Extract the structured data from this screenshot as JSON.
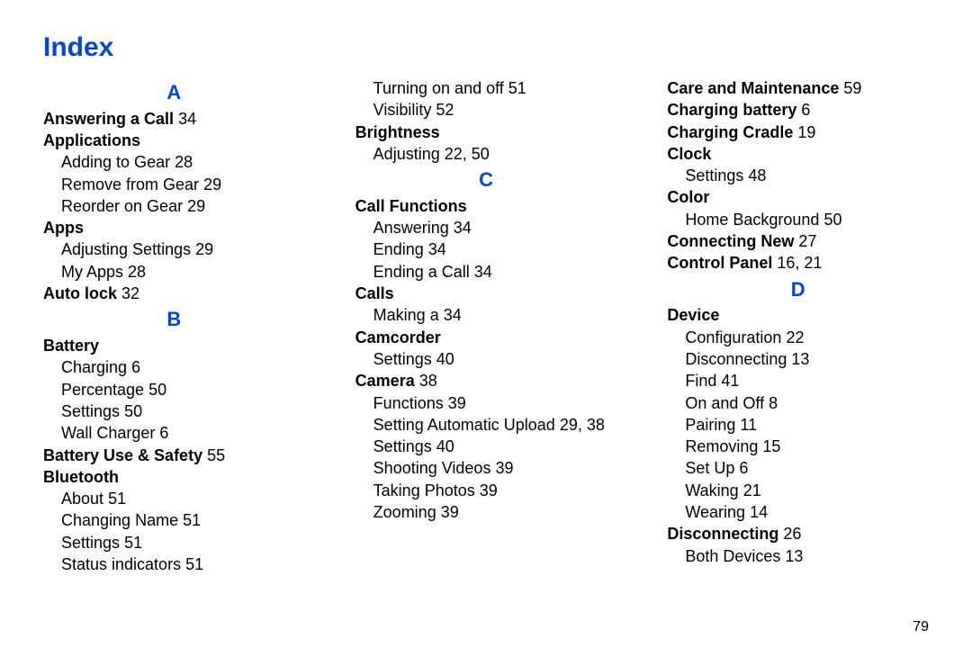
{
  "page": {
    "title": "Index",
    "pagenum": "79",
    "colors": {
      "heading_blue": "#0047d6",
      "text_black": "#000000",
      "background": "#ffffff"
    },
    "typography": {
      "body_fontsize_pt": 14,
      "title_fontsize_pt": 22,
      "letter_fontsize_pt": 17
    }
  },
  "letters": {
    "A": "A",
    "B": "B",
    "C": "C",
    "D": "D"
  },
  "col1": {
    "answering_a_call": {
      "label": "Answering a Call",
      "pg": "34"
    },
    "applications": {
      "label": "Applications",
      "adding": {
        "label": "Adding to Gear",
        "pg": "28"
      },
      "remove": {
        "label": "Remove from Gear",
        "pg": "29"
      },
      "reorder": {
        "label": "Reorder on Gear",
        "pg": "29"
      }
    },
    "apps": {
      "label": "Apps",
      "adj": {
        "label": "Adjusting Settings",
        "pg": "29"
      },
      "my": {
        "label": "My Apps",
        "pg": "28"
      }
    },
    "auto_lock": {
      "label": "Auto lock",
      "pg": "32"
    },
    "battery": {
      "label": "Battery",
      "charging": {
        "label": "Charging",
        "pg": "6"
      },
      "percentage": {
        "label": "Percentage",
        "pg": "50"
      },
      "settings": {
        "label": "Settings",
        "pg": "50"
      },
      "wall": {
        "label": "Wall Charger",
        "pg": "6"
      }
    },
    "bus": {
      "label": "Battery Use & Safety",
      "pg": "55"
    },
    "bluetooth": {
      "label": "Bluetooth",
      "about": {
        "label": "About",
        "pg": "51"
      },
      "chname": {
        "label": "Changing Name",
        "pg": "51"
      },
      "settings": {
        "label": "Settings",
        "pg": "51"
      },
      "status": {
        "label": "Status indicators",
        "pg": "51"
      }
    }
  },
  "col2": {
    "bt_cont": {
      "turn": {
        "label": "Turning on and off",
        "pg": "51"
      },
      "vis": {
        "label": "Visibility",
        "pg": "52"
      }
    },
    "brightness": {
      "label": "Brightness",
      "adj": {
        "label": "Adjusting",
        "pg": "22, 50"
      }
    },
    "call_functions": {
      "label": "Call Functions",
      "ans": {
        "label": "Answering",
        "pg": "34"
      },
      "end": {
        "label": "Ending",
        "pg": "34"
      },
      "endcall": {
        "label": "Ending a Call",
        "pg": "34"
      }
    },
    "calls": {
      "label": "Calls",
      "making": {
        "label": "Making a",
        "pg": "34"
      }
    },
    "camcorder": {
      "label": "Camcorder",
      "settings": {
        "label": "Settings",
        "pg": "40"
      }
    },
    "camera": {
      "label": "Camera",
      "pg": "38",
      "functions": {
        "label": "Functions",
        "pg": "39"
      },
      "upload": {
        "label": "Setting Automatic Upload",
        "pg": "29, 38"
      },
      "settings": {
        "label": "Settings",
        "pg": "40"
      },
      "videos": {
        "label": "Shooting Videos",
        "pg": "39"
      },
      "photos": {
        "label": "Taking Photos",
        "pg": "39"
      },
      "zoom": {
        "label": "Zooming",
        "pg": "39"
      }
    }
  },
  "col3": {
    "care": {
      "label": "Care and Maintenance",
      "pg": "59"
    },
    "chbatt": {
      "label": "Charging battery",
      "pg": "6"
    },
    "cradle": {
      "label": "Charging Cradle",
      "pg": "19"
    },
    "clock": {
      "label": "Clock",
      "settings": {
        "label": "Settings",
        "pg": "48"
      }
    },
    "color": {
      "label": "Color",
      "home": {
        "label": "Home Background",
        "pg": "50"
      }
    },
    "connecting": {
      "label": "Connecting New",
      "pg": "27"
    },
    "cpanel": {
      "label": "Control Panel",
      "pg": "16, 21"
    },
    "device": {
      "label": "Device",
      "config": {
        "label": "Configuration",
        "pg": "22"
      },
      "disc": {
        "label": "Disconnecting",
        "pg": "13"
      },
      "find": {
        "label": "Find",
        "pg": "41"
      },
      "onoff": {
        "label": "On and Off",
        "pg": "8"
      },
      "pairing": {
        "label": "Pairing",
        "pg": "11"
      },
      "removing": {
        "label": "Removing",
        "pg": "15"
      },
      "setup": {
        "label": "Set Up",
        "pg": "6"
      },
      "waking": {
        "label": "Waking",
        "pg": "21"
      },
      "wearing": {
        "label": "Wearing",
        "pg": "14"
      }
    },
    "disconnecting": {
      "label": "Disconnecting",
      "pg": "26",
      "both": {
        "label": "Both Devices",
        "pg": "13"
      }
    }
  }
}
